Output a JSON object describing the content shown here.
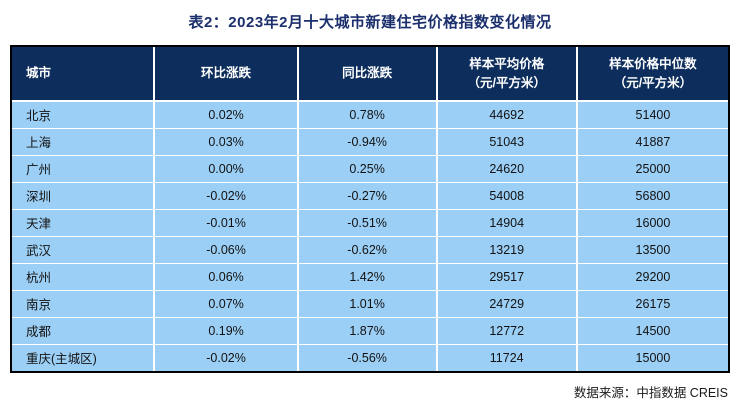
{
  "title": "表2：2023年2月十大城市新建住宅价格指数变化情况",
  "source_note": "数据来源：中指数据 CREIS",
  "colors": {
    "header_bg": "#0d2e5c",
    "row_bg": "#9ccff5",
    "title_color": "#1b2f6d",
    "border_color": "#000000"
  },
  "table": {
    "headers": [
      {
        "label": "城市",
        "sub": ""
      },
      {
        "label": "环比涨跌",
        "sub": ""
      },
      {
        "label": "同比涨跌",
        "sub": ""
      },
      {
        "label": "样本平均价格",
        "sub": "（元/平方米）"
      },
      {
        "label": "样本价格中位数",
        "sub": "（元/平方米）"
      }
    ],
    "rows": [
      {
        "city": "北京",
        "mom": "0.02%",
        "yoy": "0.78%",
        "avg_price": "44692",
        "median_price": "51400"
      },
      {
        "city": "上海",
        "mom": "0.03%",
        "yoy": "-0.94%",
        "avg_price": "51043",
        "median_price": "41887"
      },
      {
        "city": "广州",
        "mom": "0.00%",
        "yoy": "0.25%",
        "avg_price": "24620",
        "median_price": "25000"
      },
      {
        "city": "深圳",
        "mom": "-0.02%",
        "yoy": "-0.27%",
        "avg_price": "54008",
        "median_price": "56800"
      },
      {
        "city": "天津",
        "mom": "-0.01%",
        "yoy": "-0.51%",
        "avg_price": "14904",
        "median_price": "16000"
      },
      {
        "city": "武汉",
        "mom": "-0.06%",
        "yoy": "-0.62%",
        "avg_price": "13219",
        "median_price": "13500"
      },
      {
        "city": "杭州",
        "mom": "0.06%",
        "yoy": "1.42%",
        "avg_price": "29517",
        "median_price": "29200"
      },
      {
        "city": "南京",
        "mom": "0.07%",
        "yoy": "1.01%",
        "avg_price": "24729",
        "median_price": "26175"
      },
      {
        "city": "成都",
        "mom": "0.19%",
        "yoy": "1.87%",
        "avg_price": "12772",
        "median_price": "14500"
      },
      {
        "city": "重庆(主城区)",
        "mom": "-0.02%",
        "yoy": "-0.56%",
        "avg_price": "11724",
        "median_price": "15000"
      }
    ]
  },
  "chart_data": {
    "type": "table",
    "title": "表2：2023年2月十大城市新建住宅价格指数变化情况",
    "columns": [
      "城市",
      "环比涨跌",
      "同比涨跌",
      "样本平均价格（元/平方米）",
      "样本价格中位数（元/平方米）"
    ],
    "rows": [
      [
        "北京",
        "0.02%",
        "0.78%",
        44692,
        51400
      ],
      [
        "上海",
        "0.03%",
        "-0.94%",
        51043,
        41887
      ],
      [
        "广州",
        "0.00%",
        "0.25%",
        24620,
        25000
      ],
      [
        "深圳",
        "-0.02%",
        "-0.27%",
        54008,
        56800
      ],
      [
        "天津",
        "-0.01%",
        "-0.51%",
        14904,
        16000
      ],
      [
        "武汉",
        "-0.06%",
        "-0.62%",
        13219,
        13500
      ],
      [
        "杭州",
        "0.06%",
        "1.42%",
        29517,
        29200
      ],
      [
        "南京",
        "0.07%",
        "1.01%",
        24729,
        26175
      ],
      [
        "成都",
        "0.19%",
        "1.87%",
        12772,
        14500
      ],
      [
        "重庆(主城区)",
        "-0.02%",
        "-0.56%",
        11724,
        15000
      ]
    ],
    "source": "数据来源：中指数据 CREIS"
  }
}
